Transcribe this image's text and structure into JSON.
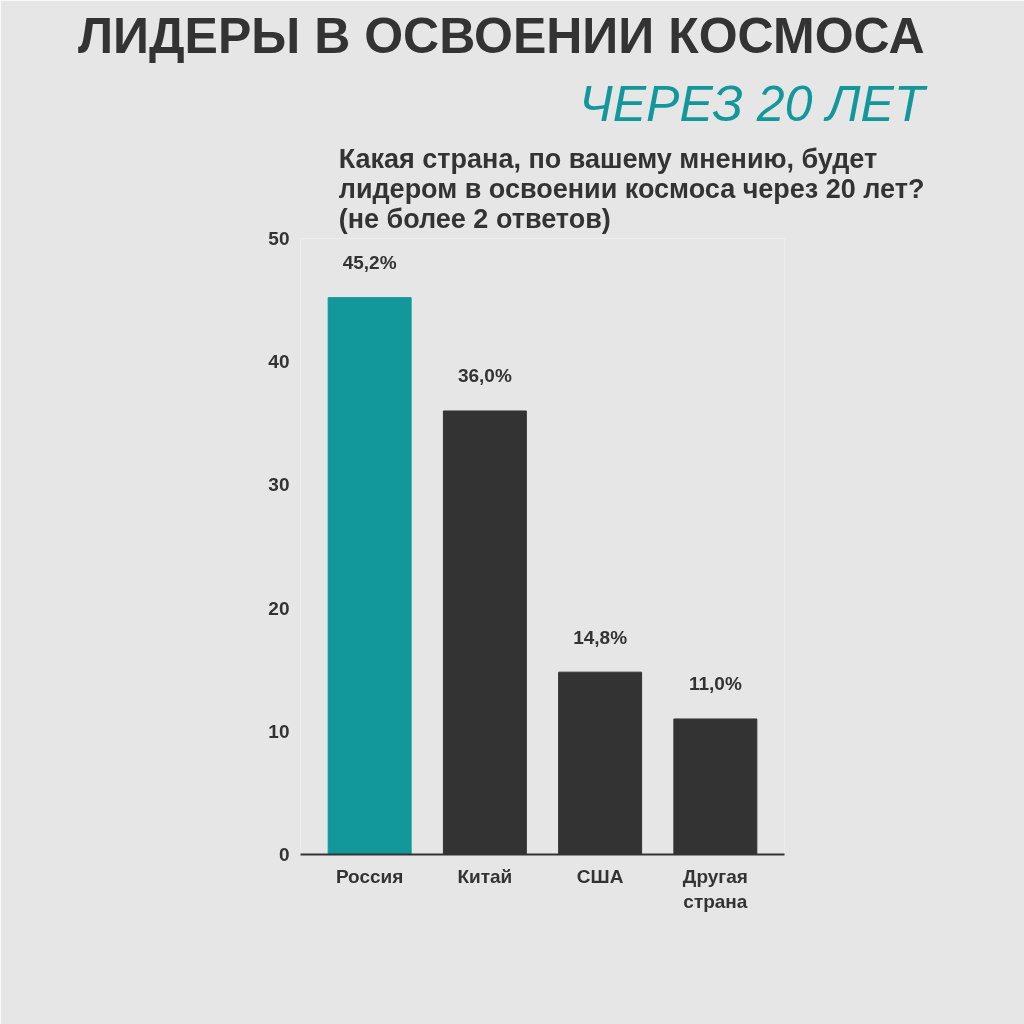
{
  "chart_data": {
    "type": "bar",
    "title": "ЛИДЕРЫ В ОСВОЕНИИ КОСМОСА",
    "subtitle": "Какая страна, по вашему мнению, будет лидером в освоении космоса через 20 лет? (не более 2 ответов)",
    "annotations": [
      "ЧЕРЕЗ 20 ЛЕТ"
    ],
    "categories": [
      "Россия",
      "Китай",
      "США",
      "Другая страна"
    ],
    "values": [
      45.2,
      36.0,
      14.8,
      11.0
    ],
    "colors": [
      "#12979a",
      "#333333",
      "#333333",
      "#333333"
    ],
    "value_labels": [
      "45,2%",
      "36,0%",
      "14,8%",
      "11,0%"
    ],
    "ylim": [
      0,
      50
    ],
    "yticks": [
      0,
      10,
      20,
      30,
      40,
      50
    ]
  }
}
